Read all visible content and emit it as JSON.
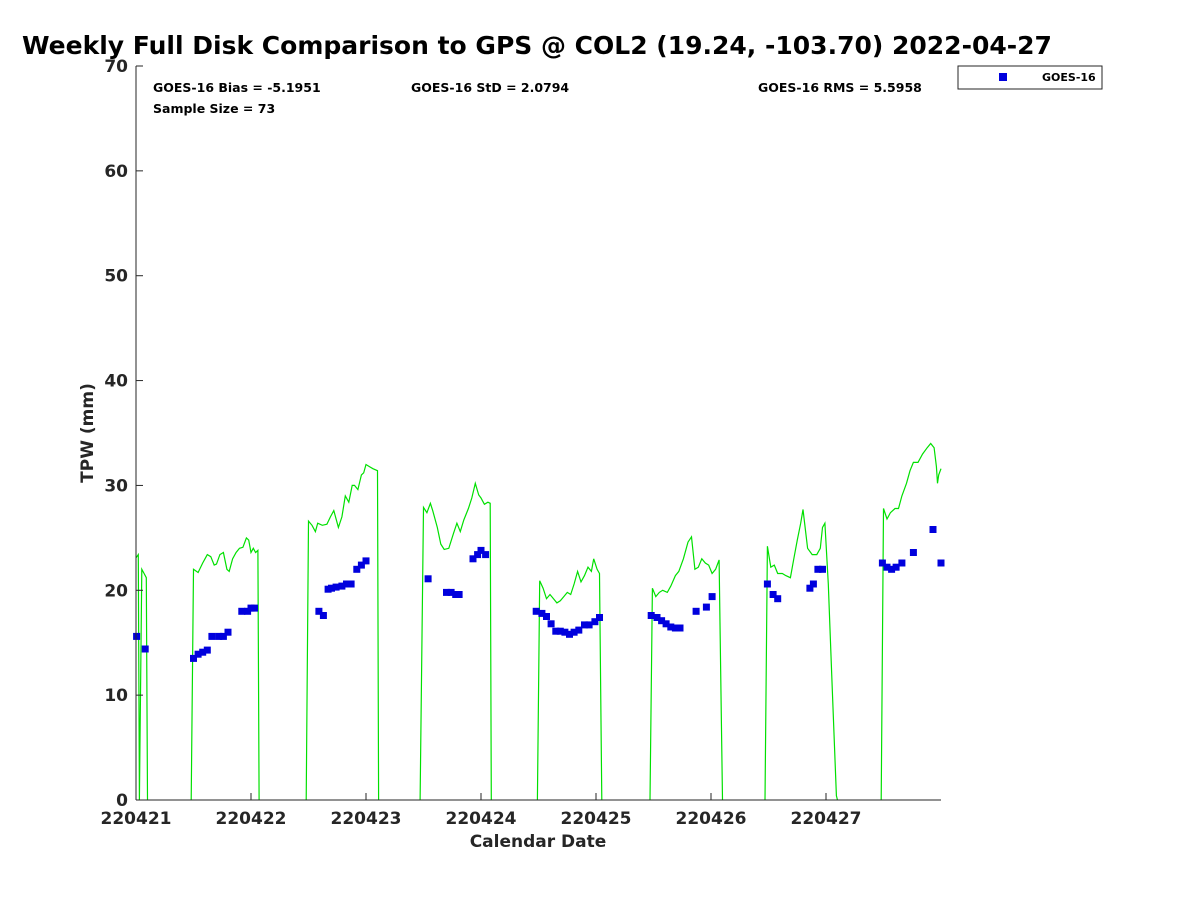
{
  "chart_data": {
    "type": "scatter",
    "title": "Weekly Full Disk Comparison to GPS @ COL2 (19.24, -103.70) 2022-04-27",
    "xlabel": "Calendar Date",
    "ylabel": "TPW (mm)",
    "xlim": [
      0,
      7
    ],
    "ylim": [
      0,
      70
    ],
    "yticks": [
      0,
      10,
      20,
      30,
      40,
      50,
      60,
      70
    ],
    "xticks": [
      {
        "x": 0,
        "label": "220421"
      },
      {
        "x": 1,
        "label": "220422"
      },
      {
        "x": 2,
        "label": "220423"
      },
      {
        "x": 3,
        "label": "220424"
      },
      {
        "x": 4,
        "label": "220425"
      },
      {
        "x": 5,
        "label": "220426"
      },
      {
        "x": 6,
        "label": "220427"
      }
    ],
    "grid": false,
    "legend_position": "outside top-right",
    "stats": {
      "bias": "GOES-16 Bias = -5.1951",
      "std": "GOES-16 StD = 2.0794",
      "rms": "GOES-16 RMS = 5.5958",
      "sample": "Sample Size = 73"
    },
    "series": [
      {
        "name": "GOES-16",
        "kind": "markers",
        "color": "#0000dd",
        "x": [
          0.005,
          0.08,
          0.5,
          0.54,
          0.58,
          0.62,
          0.66,
          0.72,
          0.76,
          0.8,
          0.92,
          0.97,
          1.0,
          1.03,
          1.59,
          1.63,
          1.67,
          1.7,
          1.74,
          1.79,
          1.83,
          1.87,
          1.92,
          1.96,
          2.0,
          2.54,
          2.7,
          2.74,
          2.78,
          2.81,
          2.93,
          2.97,
          3.0,
          3.04,
          3.48,
          3.53,
          3.57,
          3.61,
          3.65,
          3.69,
          3.73,
          3.77,
          3.81,
          3.85,
          3.9,
          3.94,
          3.99,
          4.03,
          4.48,
          4.53,
          4.57,
          4.61,
          4.65,
          4.69,
          4.73,
          4.87,
          4.96,
          5.01,
          5.49,
          5.54,
          5.58,
          5.86,
          5.89,
          5.93,
          5.97,
          6.49,
          6.53,
          6.57,
          6.61,
          6.66,
          6.76,
          6.93,
          7.0
        ],
        "y": [
          15.6,
          14.4,
          13.5,
          13.9,
          14.1,
          14.3,
          15.6,
          15.6,
          15.6,
          16.0,
          18.0,
          18.0,
          18.3,
          18.3,
          18.0,
          17.6,
          20.1,
          20.2,
          20.3,
          20.4,
          20.6,
          20.6,
          22.0,
          22.4,
          22.8,
          21.1,
          19.8,
          19.8,
          19.6,
          19.6,
          23.0,
          23.4,
          23.8,
          23.4,
          18.0,
          17.8,
          17.5,
          16.8,
          16.1,
          16.1,
          16.0,
          15.8,
          16.0,
          16.2,
          16.7,
          16.7,
          17.0,
          17.4,
          17.6,
          17.4,
          17.1,
          16.8,
          16.5,
          16.4,
          16.4,
          18.0,
          18.4,
          19.4,
          20.6,
          19.6,
          19.2,
          20.2,
          20.6,
          22.0,
          22.0,
          22.6,
          22.2,
          22.0,
          22.2,
          22.6,
          23.6,
          25.8,
          22.6
        ]
      },
      {
        "kind": "line",
        "color": "#00e000",
        "segments": [
          {
            "x": [
              0.0,
              0.02,
              0.03,
              0.05,
              0.07,
              0.09,
              0.1
            ],
            "y": [
              23.1,
              23.4,
              0.0,
              22.0,
              21.6,
              21.2,
              0.0
            ]
          },
          {
            "x": [
              0.48,
              0.5,
              0.54,
              0.58,
              0.6,
              0.62,
              0.65,
              0.68,
              0.7,
              0.73,
              0.76,
              0.79,
              0.81,
              0.84,
              0.87,
              0.9,
              0.93,
              0.96,
              0.98,
              1.0,
              1.02,
              1.04,
              1.06,
              1.07
            ],
            "y": [
              0.0,
              22.0,
              21.7,
              22.6,
              23.0,
              23.4,
              23.2,
              22.4,
              22.5,
              23.4,
              23.6,
              22.0,
              21.8,
              23.0,
              23.6,
              24.0,
              24.1,
              25.0,
              24.8,
              23.6,
              24.0,
              23.6,
              23.8,
              0.0
            ]
          },
          {
            "x": [
              1.48,
              1.5,
              1.53,
              1.56,
              1.58,
              1.62,
              1.66,
              1.69,
              1.72,
              1.76,
              1.79,
              1.82,
              1.85,
              1.88,
              1.9,
              1.93,
              1.96,
              1.98,
              2.0,
              2.03,
              2.06,
              2.1,
              2.11
            ],
            "y": [
              0.0,
              26.6,
              26.2,
              25.6,
              26.4,
              26.2,
              26.3,
              27.0,
              27.6,
              26.0,
              27.0,
              29.0,
              28.4,
              30.0,
              30.0,
              29.6,
              31.0,
              31.2,
              32.0,
              31.8,
              31.6,
              31.4,
              0.0
            ]
          },
          {
            "x": [
              2.47,
              2.5,
              2.53,
              2.56,
              2.58,
              2.62,
              2.65,
              2.68,
              2.72,
              2.76,
              2.79,
              2.82,
              2.85,
              2.89,
              2.92,
              2.95,
              2.98,
              3.0,
              3.03,
              3.06,
              3.08,
              3.09
            ],
            "y": [
              0.0,
              27.9,
              27.4,
              28.3,
              27.6,
              26.0,
              24.4,
              23.9,
              24.0,
              25.4,
              26.4,
              25.6,
              26.7,
              27.8,
              28.8,
              30.2,
              29.1,
              28.8,
              28.2,
              28.4,
              28.3,
              0.0
            ]
          },
          {
            "x": [
              3.49,
              3.51,
              3.54,
              3.57,
              3.6,
              3.63,
              3.66,
              3.69,
              3.72,
              3.75,
              3.78,
              3.81,
              3.84,
              3.87,
              3.9,
              3.93,
              3.96,
              3.98,
              4.01,
              4.03,
              4.05
            ],
            "y": [
              0.0,
              20.9,
              20.2,
              19.2,
              19.6,
              19.2,
              18.8,
              19.0,
              19.4,
              19.8,
              19.6,
              20.6,
              21.8,
              20.8,
              21.4,
              22.2,
              21.8,
              23.0,
              22.0,
              21.6,
              0.0
            ]
          },
          {
            "x": [
              4.47,
              4.49,
              4.52,
              4.55,
              4.58,
              4.62,
              4.65,
              4.69,
              4.72,
              4.76,
              4.8,
              4.83,
              4.86,
              4.89,
              4.92,
              4.95,
              4.98,
              5.01,
              5.04,
              5.07,
              5.1
            ],
            "y": [
              0.0,
              20.2,
              19.4,
              19.8,
              20.0,
              19.8,
              20.4,
              21.4,
              21.8,
              23.0,
              24.6,
              25.1,
              22.0,
              22.2,
              23.0,
              22.6,
              22.4,
              21.6,
              22.0,
              22.9,
              0.0
            ]
          },
          {
            "x": [
              5.47,
              5.49,
              5.52,
              5.55,
              5.58,
              5.62,
              5.65,
              5.69,
              5.72,
              5.75,
              5.78,
              5.8,
              5.84,
              5.88,
              5.92,
              5.95,
              5.97,
              5.99,
              6.02,
              6.05,
              6.09,
              6.1
            ],
            "y": [
              0.0,
              24.2,
              22.2,
              22.4,
              21.6,
              21.6,
              21.4,
              21.2,
              23.0,
              24.8,
              26.4,
              27.7,
              24.0,
              23.4,
              23.4,
              24.0,
              26.0,
              26.4,
              20.6,
              12.0,
              0.4,
              0.0
            ]
          },
          {
            "x": [
              6.48,
              6.5,
              6.53,
              6.56,
              6.6,
              6.63,
              6.66,
              6.7,
              6.73,
              6.76,
              6.8,
              6.84,
              6.88,
              6.91,
              6.94,
              6.96,
              6.97,
              6.98,
              7.0
            ],
            "y": [
              0.0,
              27.8,
              26.8,
              27.4,
              27.8,
              27.8,
              29.0,
              30.2,
              31.4,
              32.2,
              32.2,
              33.0,
              33.6,
              34.0,
              33.6,
              31.8,
              30.2,
              31.0,
              31.6
            ]
          }
        ]
      }
    ]
  }
}
